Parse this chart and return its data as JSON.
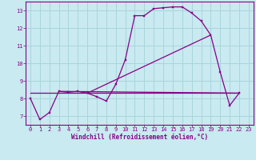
{
  "bg_color": "#c8eaf0",
  "grid_color": "#aad4dc",
  "line_color": "#880088",
  "marker_color": "#880088",
  "xlabel": "Windchill (Refroidissement éolien,°C)",
  "xlim": [
    -0.5,
    23.5
  ],
  "ylim": [
    6.5,
    13.5
  ],
  "yticks": [
    7,
    8,
    9,
    10,
    11,
    12,
    13
  ],
  "xticks": [
    0,
    1,
    2,
    3,
    4,
    5,
    6,
    7,
    8,
    9,
    10,
    11,
    12,
    13,
    14,
    15,
    16,
    17,
    18,
    19,
    20,
    21,
    22,
    23
  ],
  "series": [
    [
      0,
      8.0
    ],
    [
      1,
      6.8
    ],
    [
      2,
      7.2
    ],
    [
      3,
      8.4
    ],
    [
      4,
      8.35
    ],
    [
      5,
      8.4
    ],
    [
      6,
      8.3
    ],
    [
      7,
      8.1
    ],
    [
      8,
      7.85
    ],
    [
      9,
      8.8
    ],
    [
      10,
      10.2
    ],
    [
      11,
      12.7
    ],
    [
      12,
      12.7
    ],
    [
      13,
      13.1
    ],
    [
      14,
      13.15
    ],
    [
      15,
      13.2
    ],
    [
      16,
      13.2
    ],
    [
      17,
      12.85
    ],
    [
      18,
      12.4
    ],
    [
      19,
      11.6
    ],
    [
      20,
      9.5
    ],
    [
      21,
      7.6
    ],
    [
      22,
      8.3
    ]
  ],
  "flat_line": [
    [
      0,
      8.3
    ],
    [
      22,
      8.3
    ]
  ],
  "diag_line": [
    [
      3,
      8.4
    ],
    [
      22,
      8.3
    ]
  ],
  "diag_line2": [
    [
      6,
      8.3
    ],
    [
      19,
      11.6
    ]
  ]
}
